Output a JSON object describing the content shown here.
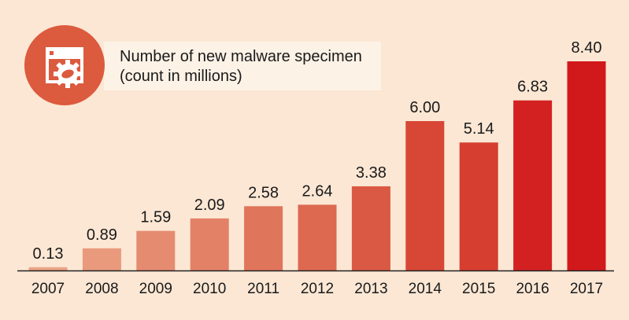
{
  "chart_data": {
    "type": "bar",
    "title": "Number of new malware specimen",
    "subtitle": "(count in millions)",
    "categories": [
      "2007",
      "2008",
      "2009",
      "2010",
      "2011",
      "2012",
      "2013",
      "2014",
      "2015",
      "2016",
      "2017"
    ],
    "values": [
      0.13,
      0.89,
      1.59,
      2.09,
      2.58,
      2.64,
      3.38,
      6.0,
      5.14,
      6.83,
      8.4
    ],
    "value_labels": [
      "0.13",
      "0.89",
      "1.59",
      "2.09",
      "2.58",
      "2.64",
      "3.38",
      "6.00",
      "5.14",
      "6.83",
      "8.40"
    ],
    "colors": [
      "#eba385",
      "#e99a7c",
      "#e58b70",
      "#e28166",
      "#df755a",
      "#dc6950",
      "#da5944",
      "#d84735",
      "#d63e30",
      "#d32121",
      "#d1191b"
    ],
    "ylim": [
      0,
      8.4
    ],
    "grid": false,
    "legend": "none",
    "icon": "malware-gear-window-icon",
    "badge_color": "#dc5a3e",
    "background": "#fbe7d4"
  }
}
